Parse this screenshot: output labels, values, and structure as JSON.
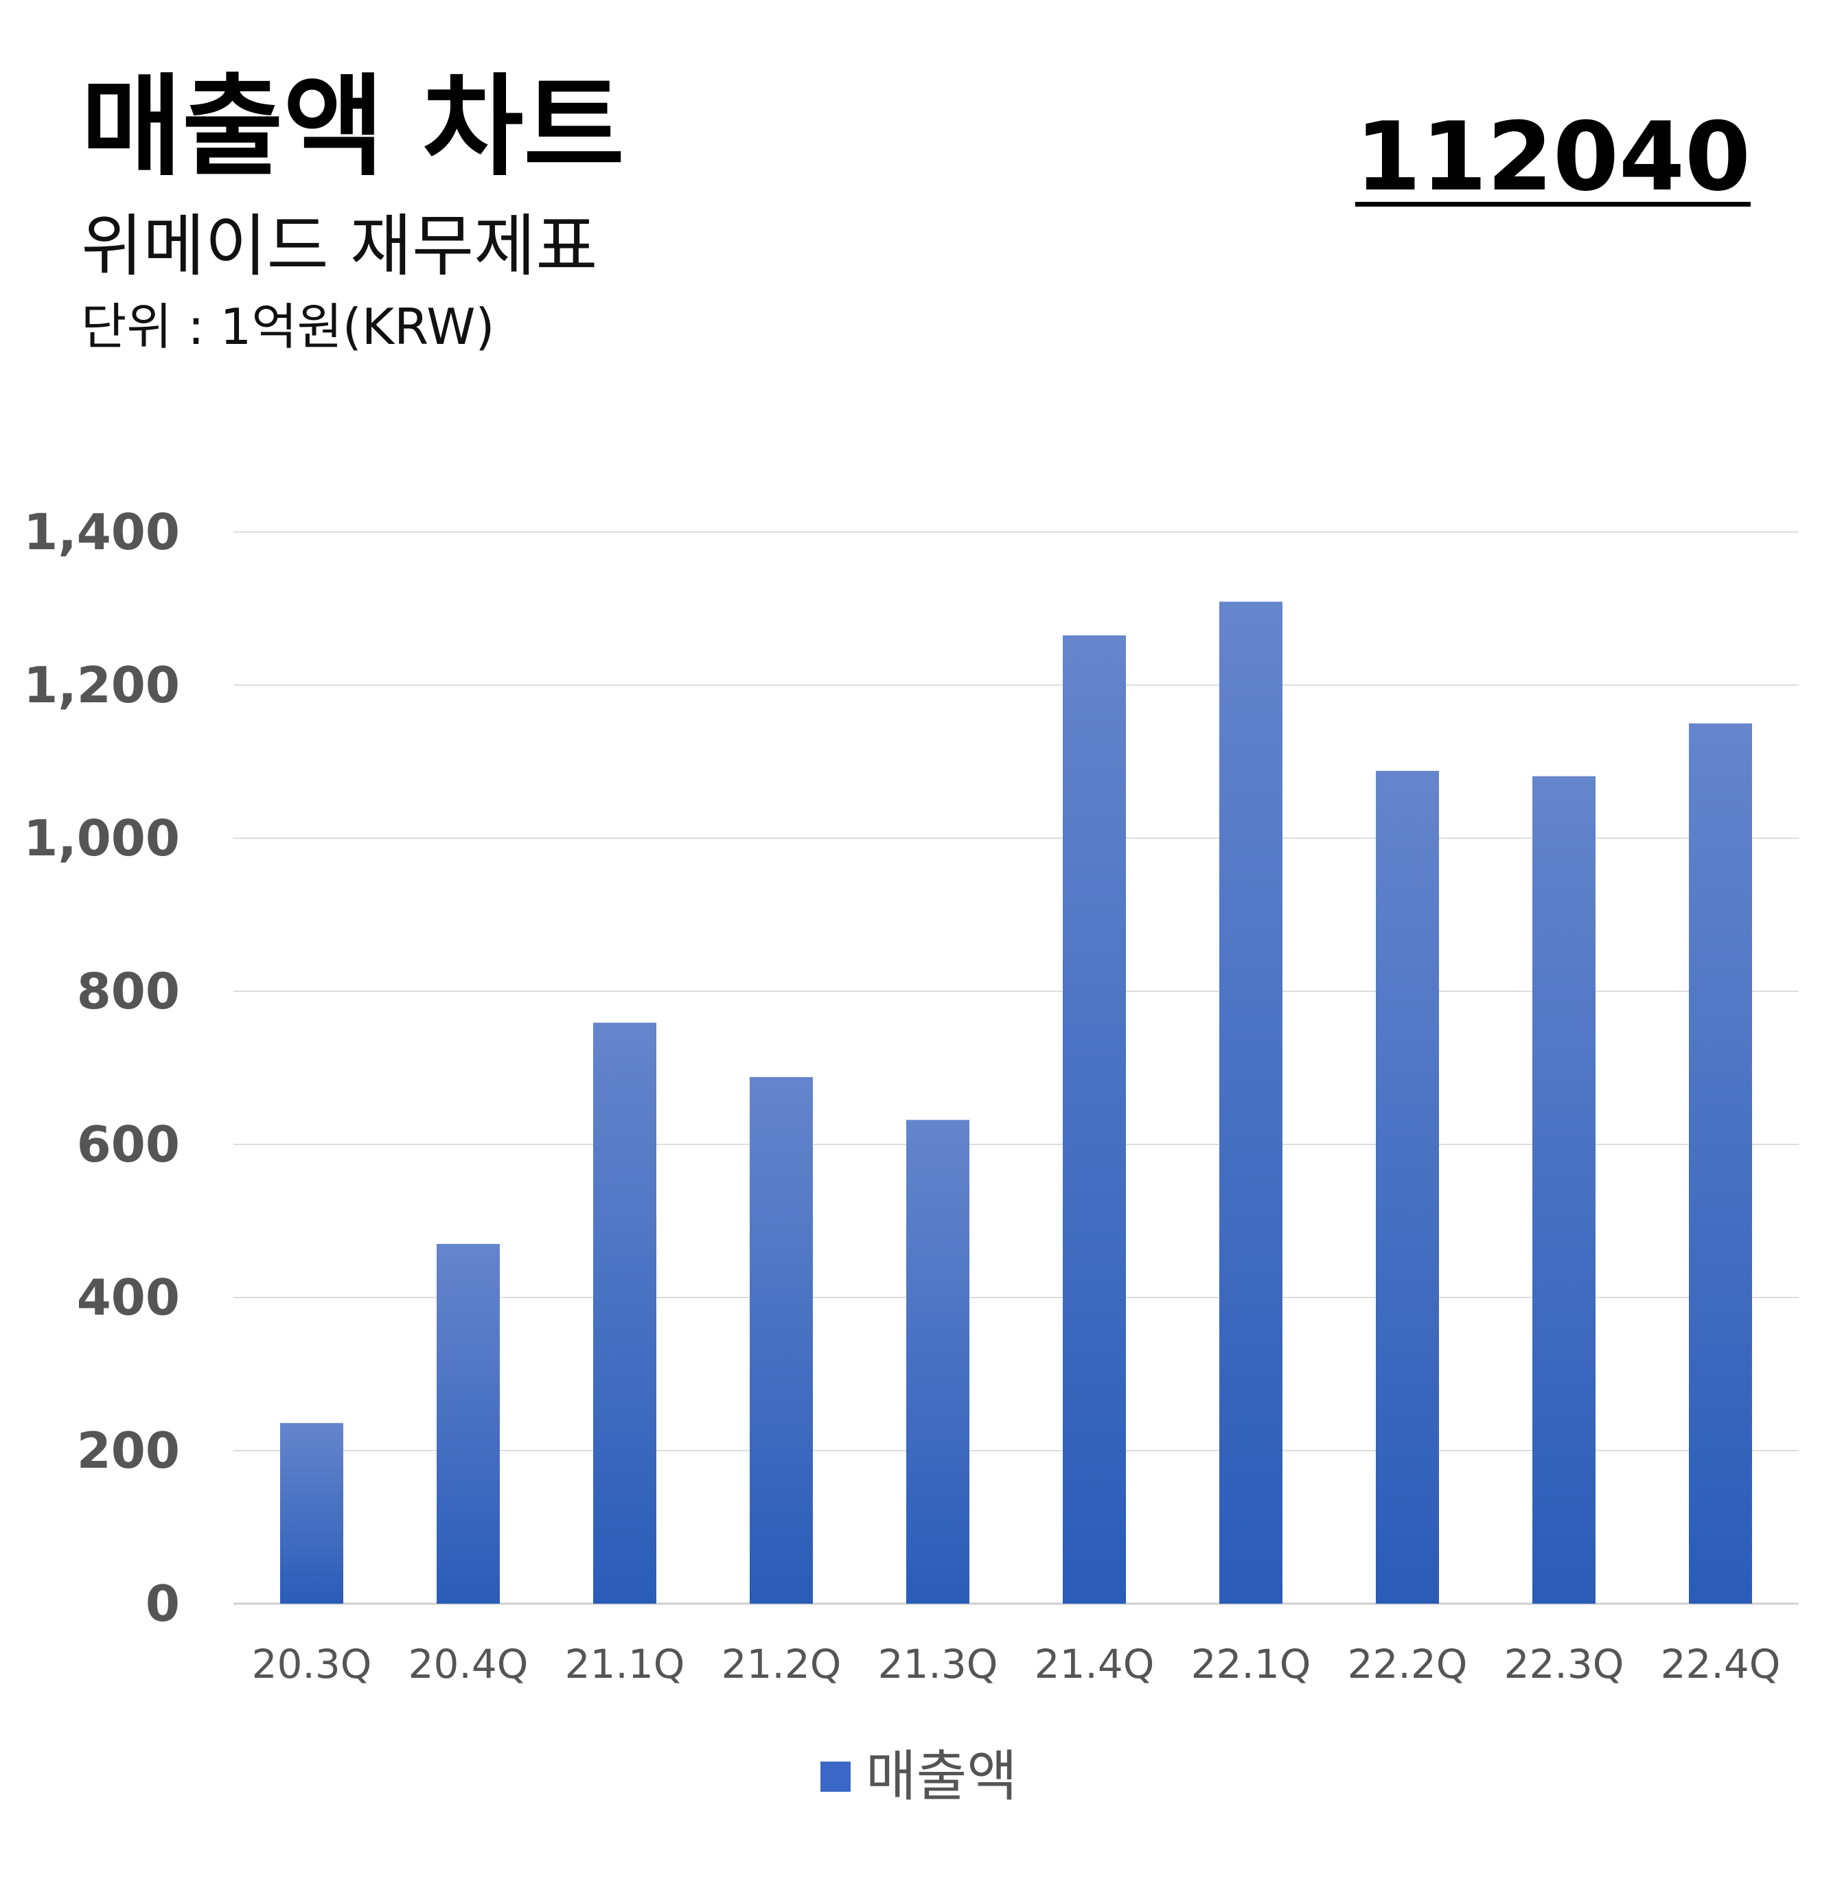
{
  "header": {
    "title": "매출액 차트",
    "subtitle": "위메이드 재무제표",
    "unit": "단위 : 1억원(KRW)",
    "ticker": "112040"
  },
  "chart_data": {
    "type": "bar",
    "categories": [
      "20.3Q",
      "20.4Q",
      "21.1Q",
      "21.2Q",
      "21.3Q",
      "21.4Q",
      "22.1Q",
      "22.2Q",
      "22.3Q",
      "22.4Q"
    ],
    "series": [
      {
        "name": "매출액",
        "values": [
          236,
          470,
          759,
          688,
          632,
          1265,
          1309,
          1088,
          1081,
          1150
        ]
      }
    ],
    "yticks": [
      "0",
      "200",
      "400",
      "600",
      "800",
      "1,000",
      "1,200",
      "1,400"
    ],
    "ylim": [
      0,
      1400
    ],
    "grid": true,
    "legend_position": "bottom",
    "colors": {
      "bar_top": "#6585cc",
      "bar_bottom": "#2a5cb8",
      "grid": "#dddddd",
      "tick_label": "#555555"
    }
  }
}
